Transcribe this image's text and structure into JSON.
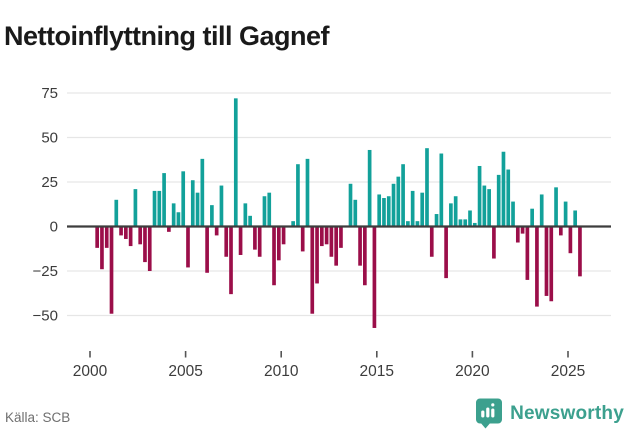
{
  "header": {
    "title": "Nettoinflyttning till Gagnef"
  },
  "footer": {
    "source_label": "Källa: SCB",
    "brand": "Newsworthy"
  },
  "colors": {
    "positive_bar": "#12a19a",
    "negative_bar": "#9b0e49",
    "grid_line": "#e6e6e6",
    "zero_line": "#3d3d3d",
    "axis_text": "#3c3c3c",
    "tick_mark": "#555555",
    "title_text": "#1a1a1a",
    "source_text": "#6f6f6f",
    "brand_teal": "#3ca08e"
  },
  "icons": {
    "brand_icon": "newsworthy-pin-barchart"
  },
  "chart_data": {
    "type": "bar",
    "title": "Nettoinflyttning till Gagnef",
    "xlabel": "",
    "ylabel": "",
    "x_unit": "quarter",
    "start_year": 2000,
    "start_quarter": 1,
    "values": [
      0,
      -12,
      -24,
      -12,
      -49,
      15,
      -5,
      -7,
      -11,
      21,
      -10,
      -20,
      -25,
      20,
      20,
      30,
      -3,
      13,
      8,
      31,
      -23,
      26,
      19,
      38,
      -26,
      12,
      -5,
      23,
      -17,
      -38,
      72,
      -16,
      13,
      6,
      -13,
      -17,
      17,
      19,
      -33,
      -19,
      -10,
      0,
      3,
      35,
      -14,
      38,
      -49,
      -32,
      -11,
      -10,
      -17,
      -22,
      -12,
      0,
      24,
      15,
      -22,
      -33,
      43,
      -57,
      18,
      16,
      17,
      24,
      28,
      35,
      3,
      20,
      3,
      19,
      44,
      -17,
      7,
      41,
      -29,
      13,
      17,
      4,
      4,
      9,
      2,
      34,
      23,
      21,
      -18,
      29,
      42,
      32,
      14,
      -9,
      -4,
      -30,
      10,
      -45,
      18,
      -39,
      -42,
      22,
      -5,
      14,
      -15,
      9,
      -28
    ],
    "x_ticks": [
      2000,
      2005,
      2010,
      2015,
      2020,
      2025
    ],
    "y_ticks": [
      75,
      50,
      25,
      0,
      -25,
      -50
    ],
    "ylim": [
      -62,
      80
    ],
    "grid": true,
    "legend": false
  }
}
